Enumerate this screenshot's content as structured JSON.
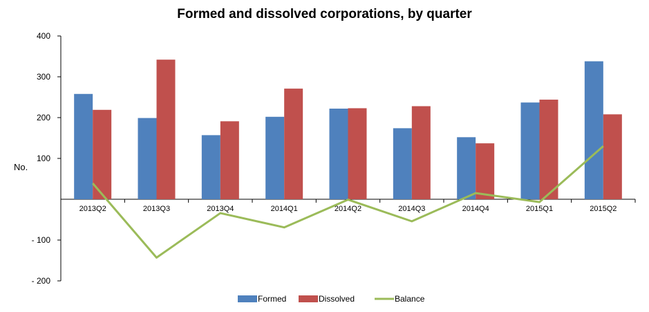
{
  "chart_data": {
    "type": "bar",
    "title": "Formed and dissolved corporations, by quarter",
    "ylabel": "No.",
    "xlabel": "",
    "ylim": [
      -200,
      400
    ],
    "yticks": [
      {
        "value": 400,
        "label": "400"
      },
      {
        "value": 300,
        "label": "300"
      },
      {
        "value": 200,
        "label": "200"
      },
      {
        "value": 100,
        "label": "100"
      },
      {
        "value": -100,
        "label": "- 100"
      },
      {
        "value": -200,
        "label": "- 200"
      }
    ],
    "categories": [
      "2013Q2",
      "2013Q3",
      "2013Q4",
      "2014Q1",
      "2014Q2",
      "2014Q3",
      "2014Q4",
      "2015Q1",
      "2015Q2"
    ],
    "series": [
      {
        "name": "Formed",
        "kind": "bar",
        "color": "#4F81BD",
        "values": [
          258,
          199,
          157,
          202,
          222,
          174,
          152,
          237,
          338
        ]
      },
      {
        "name": "Dissolved",
        "kind": "bar",
        "color": "#C0504D",
        "values": [
          219,
          342,
          191,
          271,
          223,
          228,
          137,
          244,
          208
        ]
      },
      {
        "name": "Balance",
        "kind": "line",
        "color": "#9BBB59",
        "values": [
          39,
          -143,
          -34,
          -69,
          -1,
          -54,
          15,
          -7,
          130
        ]
      }
    ],
    "grid": false,
    "legend_position": "bottom"
  }
}
